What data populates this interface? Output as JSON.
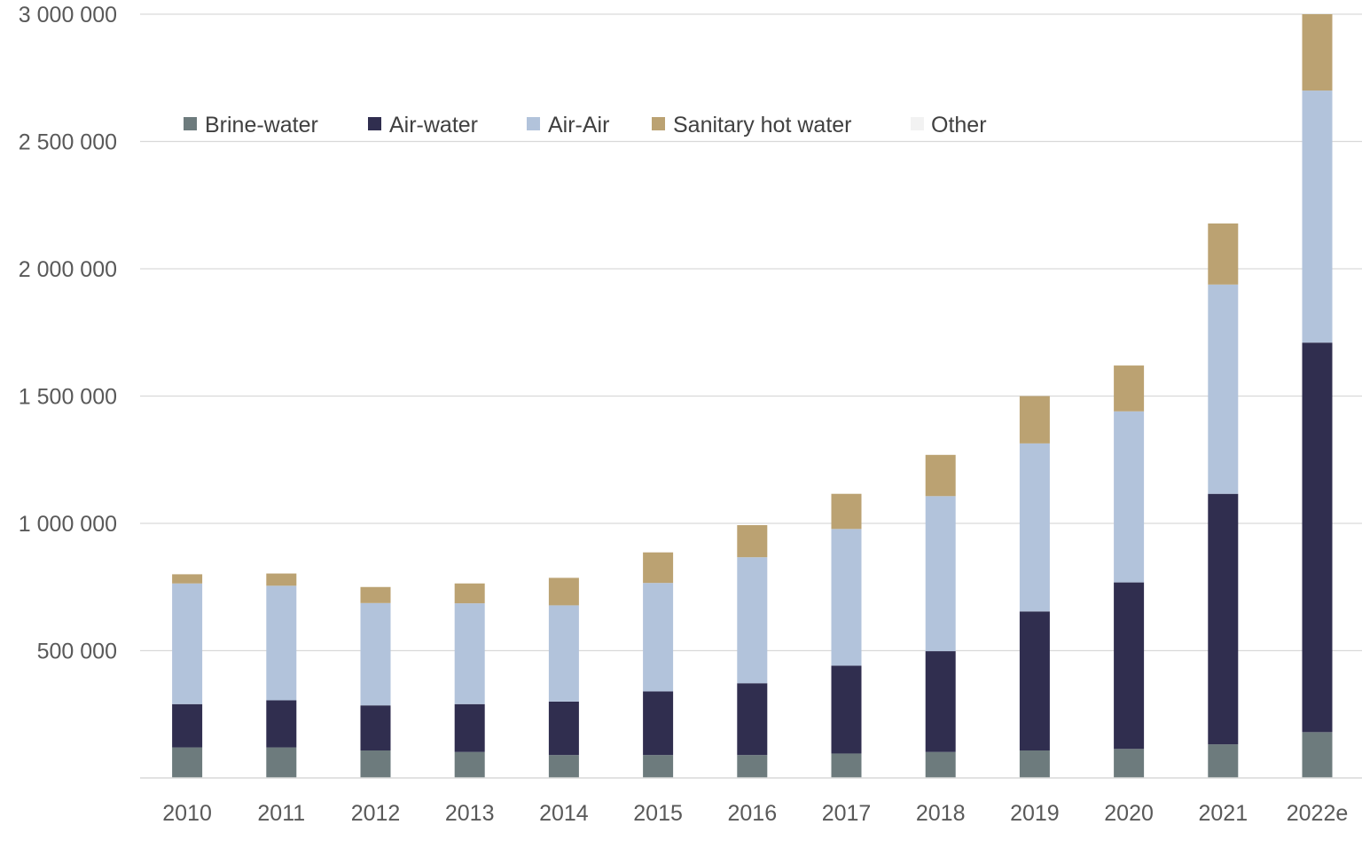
{
  "chart_data": {
    "type": "bar",
    "stacked": true,
    "title": "",
    "xlabel": "",
    "ylabel": "",
    "ylim": [
      0,
      3000000
    ],
    "yticks": [
      500000,
      1000000,
      1500000,
      2000000,
      2500000,
      3000000
    ],
    "ytick_labels": [
      "500 000",
      "1 000 000",
      "1 500 000",
      "2 000 000",
      "2 500 000",
      "3 000 000"
    ],
    "grid": true,
    "legend_position": "top-left",
    "categories": [
      "2010",
      "2011",
      "2012",
      "2013",
      "2014",
      "2015",
      "2016",
      "2017",
      "2018",
      "2019",
      "2020",
      "2021",
      "2022e"
    ],
    "series": [
      {
        "name": "Brine-water",
        "color": "#6d7b7d",
        "values": [
          120000,
          120000,
          108000,
          102000,
          90000,
          90000,
          90000,
          96000,
          102000,
          108000,
          114000,
          132000,
          180000
        ]
      },
      {
        "name": "Air-water",
        "color": "#302e4f",
        "values": [
          170000,
          185000,
          177000,
          188000,
          210000,
          250000,
          282000,
          345000,
          396000,
          546000,
          654000,
          984000,
          1530000
        ]
      },
      {
        "name": "Air-Air",
        "color": "#b2c3db",
        "values": [
          474000,
          450000,
          402000,
          396000,
          378000,
          426000,
          495000,
          537000,
          609000,
          660000,
          672000,
          822000,
          990000
        ]
      },
      {
        "name": "Sanitary hot water",
        "color": "#bba272",
        "values": [
          36000,
          48000,
          63000,
          78000,
          108000,
          120000,
          126000,
          138000,
          162000,
          186000,
          180000,
          240000,
          300000
        ]
      },
      {
        "name": "Other",
        "color": "#f2f2f2",
        "values": [
          0,
          0,
          0,
          0,
          0,
          0,
          0,
          0,
          0,
          0,
          0,
          0,
          0
        ]
      }
    ]
  }
}
